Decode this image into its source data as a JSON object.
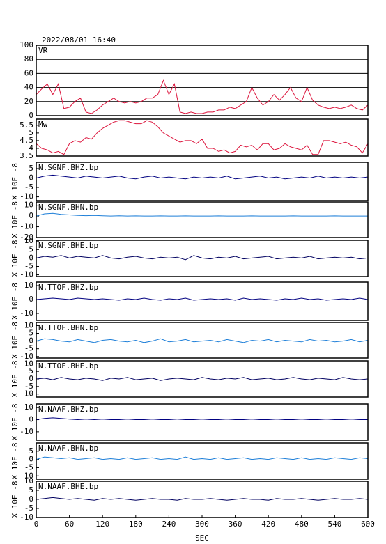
{
  "title": "2022/08/01 16:40",
  "x_axis": {
    "xlabel": "SEC",
    "xlim": [
      0,
      600
    ],
    "xticks": [
      0,
      60,
      120,
      180,
      240,
      300,
      360,
      420,
      480,
      540,
      600
    ]
  },
  "chart_data": [
    {
      "type": "line",
      "label": "VR",
      "color": "#dc143c",
      "grid": true,
      "ylim": [
        0,
        100
      ],
      "yticks": [
        0,
        20,
        40,
        60,
        80,
        100
      ],
      "x": [
        0,
        10,
        20,
        30,
        40,
        50,
        60,
        70,
        80,
        90,
        100,
        110,
        120,
        130,
        140,
        150,
        160,
        170,
        180,
        190,
        200,
        210,
        220,
        230,
        240,
        250,
        260,
        270,
        280,
        290,
        300,
        310,
        320,
        330,
        340,
        350,
        360,
        370,
        380,
        390,
        400,
        410,
        420,
        430,
        440,
        450,
        460,
        470,
        480,
        490,
        500,
        510,
        520,
        530,
        540,
        550,
        560,
        570,
        580,
        590,
        600
      ],
      "values": [
        30,
        38,
        45,
        30,
        45,
        10,
        12,
        20,
        25,
        5,
        3,
        8,
        15,
        20,
        25,
        20,
        18,
        20,
        18,
        20,
        25,
        25,
        30,
        50,
        30,
        45,
        5,
        3,
        5,
        3,
        3,
        5,
        5,
        8,
        8,
        12,
        10,
        15,
        20,
        40,
        25,
        15,
        20,
        30,
        22,
        30,
        40,
        25,
        20,
        40,
        22,
        15,
        12,
        10,
        12,
        10,
        12,
        15,
        10,
        8,
        15
      ]
    },
    {
      "type": "line",
      "label": "Mw",
      "color": "#dc143c",
      "grid": false,
      "ylim": [
        3.5,
        5.9
      ],
      "yticks": [
        3.5,
        4.0,
        4.5,
        5.0,
        5.5
      ],
      "x": [
        0,
        10,
        20,
        30,
        40,
        50,
        60,
        70,
        80,
        90,
        100,
        110,
        120,
        130,
        140,
        150,
        160,
        170,
        180,
        190,
        200,
        210,
        220,
        230,
        240,
        250,
        260,
        270,
        280,
        290,
        300,
        310,
        320,
        330,
        340,
        350,
        360,
        370,
        380,
        390,
        400,
        410,
        420,
        430,
        440,
        450,
        460,
        470,
        480,
        490,
        500,
        510,
        520,
        530,
        540,
        550,
        560,
        570,
        580,
        590,
        600
      ],
      "values": [
        4.3,
        4.0,
        3.9,
        3.7,
        3.8,
        3.6,
        4.3,
        4.5,
        4.4,
        4.7,
        4.6,
        5.0,
        5.3,
        5.5,
        5.7,
        5.8,
        5.8,
        5.7,
        5.6,
        5.6,
        5.8,
        5.7,
        5.4,
        5.0,
        4.8,
        4.6,
        4.4,
        4.5,
        4.5,
        4.3,
        4.6,
        4.0,
        4.0,
        3.8,
        3.9,
        3.7,
        3.8,
        4.2,
        4.1,
        4.2,
        3.9,
        4.3,
        4.3,
        3.9,
        4.0,
        4.3,
        4.1,
        4.0,
        3.9,
        4.2,
        3.6,
        3.6,
        4.5,
        4.5,
        4.4,
        4.3,
        4.4,
        4.2,
        4.1,
        3.7,
        4.3
      ]
    },
    {
      "type": "line",
      "label": "N.SGNF.BHZ.bp",
      "ylabel": "X 10E -8",
      "color": "#000080",
      "grid": false,
      "ylim": [
        -12,
        8.3
      ],
      "yticks": [
        5,
        0,
        -5,
        -10
      ],
      "x": [
        0,
        15,
        30,
        45,
        60,
        75,
        90,
        105,
        120,
        135,
        150,
        165,
        180,
        195,
        210,
        225,
        240,
        255,
        270,
        285,
        300,
        315,
        330,
        345,
        360,
        375,
        390,
        405,
        420,
        435,
        450,
        465,
        480,
        495,
        510,
        525,
        540,
        555,
        570,
        585,
        600
      ],
      "values": [
        0,
        1,
        1.5,
        1,
        0.5,
        0,
        1,
        0.5,
        0,
        0.5,
        1,
        0,
        -0.5,
        0.5,
        1,
        0,
        0.5,
        0,
        -0.5,
        0.5,
        0,
        0.5,
        0,
        1,
        -0.5,
        0,
        0.5,
        1,
        0,
        0.5,
        -0.5,
        0,
        0.5,
        0,
        1,
        0,
        0.5,
        0,
        0.5,
        0,
        0.5
      ]
    },
    {
      "type": "line",
      "label": "N.SGNF.BHN.bp",
      "ylabel": "X 10E -8",
      "color": "#1e7fd8",
      "grid": false,
      "ylim": [
        -20,
        13
      ],
      "yticks": [
        10,
        0,
        -10,
        -20
      ],
      "x": [
        0,
        15,
        30,
        45,
        60,
        75,
        90,
        105,
        120,
        135,
        150,
        165,
        180,
        195,
        210,
        225,
        240,
        255,
        270,
        285,
        300,
        315,
        330,
        345,
        360,
        375,
        390,
        405,
        420,
        435,
        450,
        465,
        480,
        495,
        510,
        525,
        540,
        555,
        570,
        585,
        600
      ],
      "values": [
        0,
        2,
        2.5,
        1.5,
        1,
        0.5,
        0.3,
        0.5,
        0.2,
        0,
        0.2,
        0,
        0.1,
        0,
        0,
        0.1,
        0,
        0,
        0.1,
        0,
        0,
        0,
        0.1,
        0,
        0,
        0,
        0.1,
        0,
        0,
        0,
        0,
        0.1,
        0,
        0,
        0,
        0,
        0.1,
        0,
        0,
        0,
        0
      ]
    },
    {
      "type": "line",
      "label": "N.SGNF.BHE.bp",
      "ylabel": "X 10E -8",
      "color": "#000060",
      "grid": false,
      "ylim": [
        -11,
        10.5
      ],
      "yticks": [
        10,
        5,
        0,
        -5,
        -10
      ],
      "x": [
        0,
        15,
        30,
        45,
        60,
        75,
        90,
        105,
        120,
        135,
        150,
        165,
        180,
        195,
        210,
        225,
        240,
        255,
        270,
        285,
        300,
        315,
        330,
        345,
        360,
        375,
        390,
        405,
        420,
        435,
        450,
        465,
        480,
        495,
        510,
        525,
        540,
        555,
        570,
        585,
        600
      ],
      "values": [
        0,
        1,
        0.5,
        1.5,
        0,
        1,
        0.5,
        0,
        1.5,
        0,
        -0.5,
        0.5,
        1,
        0,
        -0.5,
        0.5,
        0,
        0.5,
        -1,
        1.5,
        0,
        -0.5,
        0.5,
        0,
        1,
        -0.5,
        0,
        0.5,
        1,
        -0.5,
        0,
        0.5,
        0,
        1,
        -0.5,
        0,
        0.5,
        0,
        0.5,
        -0.5,
        0
      ]
    },
    {
      "type": "line",
      "label": "N.TTOF.BHZ.bp",
      "ylabel": "X 10E -8",
      "color": "#000080",
      "grid": false,
      "ylim": [
        -15,
        12.5
      ],
      "yticks": [
        10,
        0,
        -10
      ],
      "x": [
        0,
        15,
        30,
        45,
        60,
        75,
        90,
        105,
        120,
        135,
        150,
        165,
        180,
        195,
        210,
        225,
        240,
        255,
        270,
        285,
        300,
        315,
        330,
        345,
        360,
        375,
        390,
        405,
        420,
        435,
        450,
        465,
        480,
        495,
        510,
        525,
        540,
        555,
        570,
        585,
        600
      ],
      "values": [
        0,
        0.5,
        1,
        0.5,
        0,
        1,
        0.5,
        0,
        0.5,
        0,
        -0.5,
        0.5,
        0,
        1,
        0,
        -0.5,
        0.5,
        0,
        1,
        -0.5,
        0,
        0.5,
        0,
        0.5,
        -0.5,
        1,
        0,
        0.5,
        0,
        -0.5,
        0.5,
        0,
        1,
        0,
        0.5,
        -0.5,
        0,
        0.5,
        0,
        1,
        0
      ]
    },
    {
      "type": "line",
      "label": "N.TTOF.BHN.bp",
      "ylabel": "X 10E -8",
      "color": "#1e7fd8",
      "grid": false,
      "ylim": [
        -11,
        12
      ],
      "yticks": [
        10,
        5,
        0,
        -5,
        -10
      ],
      "x": [
        0,
        15,
        30,
        45,
        60,
        75,
        90,
        105,
        120,
        135,
        150,
        165,
        180,
        195,
        210,
        225,
        240,
        255,
        270,
        285,
        300,
        315,
        330,
        345,
        360,
        375,
        390,
        405,
        420,
        435,
        450,
        465,
        480,
        495,
        510,
        525,
        540,
        555,
        570,
        585,
        600
      ],
      "values": [
        0,
        1.5,
        1,
        0,
        -0.5,
        1,
        0,
        -1,
        0.5,
        1,
        0,
        -0.5,
        0.5,
        -1,
        0,
        1.5,
        -0.5,
        0,
        1,
        -0.5,
        0,
        0.5,
        -0.5,
        1,
        0,
        -1,
        0.5,
        0,
        1,
        -0.5,
        0.5,
        0,
        -0.5,
        1,
        0,
        0.5,
        -0.5,
        0,
        1,
        -0.5,
        0.5
      ]
    },
    {
      "type": "line",
      "label": "N.TTOF.BHE.bp",
      "ylabel": "X 10E -8",
      "color": "#000060",
      "grid": false,
      "ylim": [
        -12,
        12
      ],
      "yticks": [
        10,
        5,
        0,
        -5,
        -10
      ],
      "x": [
        0,
        15,
        30,
        45,
        60,
        75,
        90,
        105,
        120,
        135,
        150,
        165,
        180,
        195,
        210,
        225,
        240,
        255,
        270,
        285,
        300,
        315,
        330,
        345,
        360,
        375,
        390,
        405,
        420,
        435,
        450,
        465,
        480,
        495,
        510,
        525,
        540,
        555,
        570,
        585,
        600
      ],
      "values": [
        0,
        0.5,
        -0.5,
        1,
        0,
        -0.5,
        0.5,
        0,
        -1,
        0.5,
        0,
        1,
        -0.5,
        0,
        0.5,
        -1,
        0,
        0.5,
        0,
        -0.5,
        1,
        0,
        -0.5,
        0.5,
        0,
        1,
        -0.5,
        0,
        0.5,
        -0.5,
        0,
        1,
        0,
        -0.5,
        0.5,
        0,
        -0.5,
        1,
        0,
        -0.5,
        0
      ]
    },
    {
      "type": "line",
      "label": "N.NAAF.BHZ.bp",
      "ylabel": "X 10E -8",
      "color": "#000080",
      "grid": false,
      "ylim": [
        -17,
        13
      ],
      "yticks": [
        10,
        0,
        -10
      ],
      "x": [
        0,
        15,
        30,
        45,
        60,
        75,
        90,
        105,
        120,
        135,
        150,
        165,
        180,
        195,
        210,
        225,
        240,
        255,
        270,
        285,
        300,
        315,
        330,
        345,
        360,
        375,
        390,
        405,
        420,
        435,
        450,
        465,
        480,
        495,
        510,
        525,
        540,
        555,
        570,
        585,
        600
      ],
      "values": [
        0,
        1,
        1.5,
        1,
        0.5,
        0,
        0.5,
        0,
        0.5,
        0,
        0,
        0.5,
        0,
        0,
        0.5,
        0,
        0,
        0.5,
        0,
        0,
        0.5,
        0,
        0,
        0.5,
        0,
        0,
        0.5,
        0,
        0,
        0.5,
        0,
        0,
        0.5,
        0,
        0,
        0.5,
        0,
        0,
        0.5,
        0,
        0
      ]
    },
    {
      "type": "line",
      "label": "N.NAAF.BHN.bp",
      "ylabel": "X 10E -8",
      "color": "#1e7fd8",
      "grid": false,
      "ylim": [
        -12,
        10
      ],
      "yticks": [
        5,
        0,
        -5,
        -10
      ],
      "x": [
        0,
        15,
        30,
        45,
        60,
        75,
        90,
        105,
        120,
        135,
        150,
        165,
        180,
        195,
        210,
        225,
        240,
        255,
        270,
        285,
        300,
        315,
        330,
        345,
        360,
        375,
        390,
        405,
        420,
        435,
        450,
        465,
        480,
        495,
        510,
        525,
        540,
        555,
        570,
        585,
        600
      ],
      "values": [
        0,
        1.5,
        1,
        0.5,
        1,
        0,
        0.5,
        1,
        0,
        0.5,
        0,
        1,
        0,
        0.5,
        1,
        0,
        0.5,
        0,
        1.5,
        0,
        0.5,
        0,
        1,
        0,
        0.5,
        1,
        0,
        0.5,
        0,
        1,
        0.5,
        0,
        1,
        0,
        0.5,
        0,
        1,
        0.5,
        0,
        1,
        0.5
      ]
    },
    {
      "type": "line",
      "label": "N.NAAF.BHE.bp",
      "ylabel": "X 10E -8",
      "color": "#000060",
      "grid": false,
      "ylim": [
        -10,
        10
      ],
      "yticks": [
        10,
        5,
        0,
        -5,
        -10
      ],
      "x": [
        0,
        15,
        30,
        45,
        60,
        75,
        90,
        105,
        120,
        135,
        150,
        165,
        180,
        195,
        210,
        225,
        240,
        255,
        270,
        285,
        300,
        315,
        330,
        345,
        360,
        375,
        390,
        405,
        420,
        435,
        450,
        465,
        480,
        495,
        510,
        525,
        540,
        555,
        570,
        585,
        600
      ],
      "values": [
        0,
        0.5,
        1,
        0.5,
        0,
        0.5,
        0,
        -0.5,
        0.5,
        0,
        0.5,
        0,
        -0.5,
        0,
        0.5,
        0,
        0,
        -0.5,
        0.5,
        0,
        0,
        0.5,
        0,
        -0.5,
        0,
        0.5,
        0,
        0,
        -0.5,
        0.5,
        0,
        0,
        0.5,
        0,
        -0.5,
        0,
        0.5,
        0,
        0,
        0.5,
        0
      ]
    }
  ]
}
